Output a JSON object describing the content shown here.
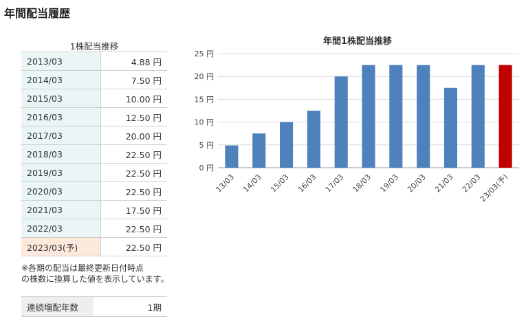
{
  "page": {
    "title": "年間配当履歴"
  },
  "table": {
    "caption": "1株配当推移",
    "rows": [
      {
        "period": "2013/03",
        "amount": "4.88 円"
      },
      {
        "period": "2014/03",
        "amount": "7.50 円"
      },
      {
        "period": "2015/03",
        "amount": "10.00 円"
      },
      {
        "period": "2016/03",
        "amount": "12.50 円"
      },
      {
        "period": "2017/03",
        "amount": "20.00 円"
      },
      {
        "period": "2018/03",
        "amount": "22.50 円"
      },
      {
        "period": "2019/03",
        "amount": "22.50 円"
      },
      {
        "period": "2020/03",
        "amount": "22.50 円"
      },
      {
        "period": "2021/03",
        "amount": "17.50 円"
      },
      {
        "period": "2022/03",
        "amount": "22.50 円"
      },
      {
        "period": "2023/03(予)",
        "amount": "22.50 円"
      }
    ]
  },
  "note": {
    "line1": "※各期の配当は最終更新日付時点",
    "line2": "の株数に換算した値を表示しています。"
  },
  "streak": {
    "label": "連続増配年数",
    "value": "1期"
  },
  "colors": {
    "bar": "#4f81bd",
    "forecast_bar": "#c00000",
    "forecast_cell": "#fde9dc",
    "period_cell": "#eaf5f6"
  },
  "chart_data": {
    "type": "bar",
    "title": "年間1株配当推移",
    "categories": [
      "13/03",
      "14/03",
      "15/03",
      "16/03",
      "17/03",
      "18/03",
      "19/03",
      "20/03",
      "21/03",
      "22/03",
      "23/03(予)"
    ],
    "values": [
      4.88,
      7.5,
      10,
      12.5,
      20,
      22.5,
      22.5,
      22.5,
      17.5,
      22.5,
      22.5
    ],
    "forecast_index": 10,
    "ylim": [
      0,
      25
    ],
    "yticks": [
      0,
      5,
      10,
      15,
      20,
      25
    ],
    "ytick_labels": [
      "0 円",
      "5 円",
      "10 円",
      "15 円",
      "20 円",
      "25 円"
    ],
    "grid": true,
    "xlabel": "",
    "ylabel": ""
  }
}
